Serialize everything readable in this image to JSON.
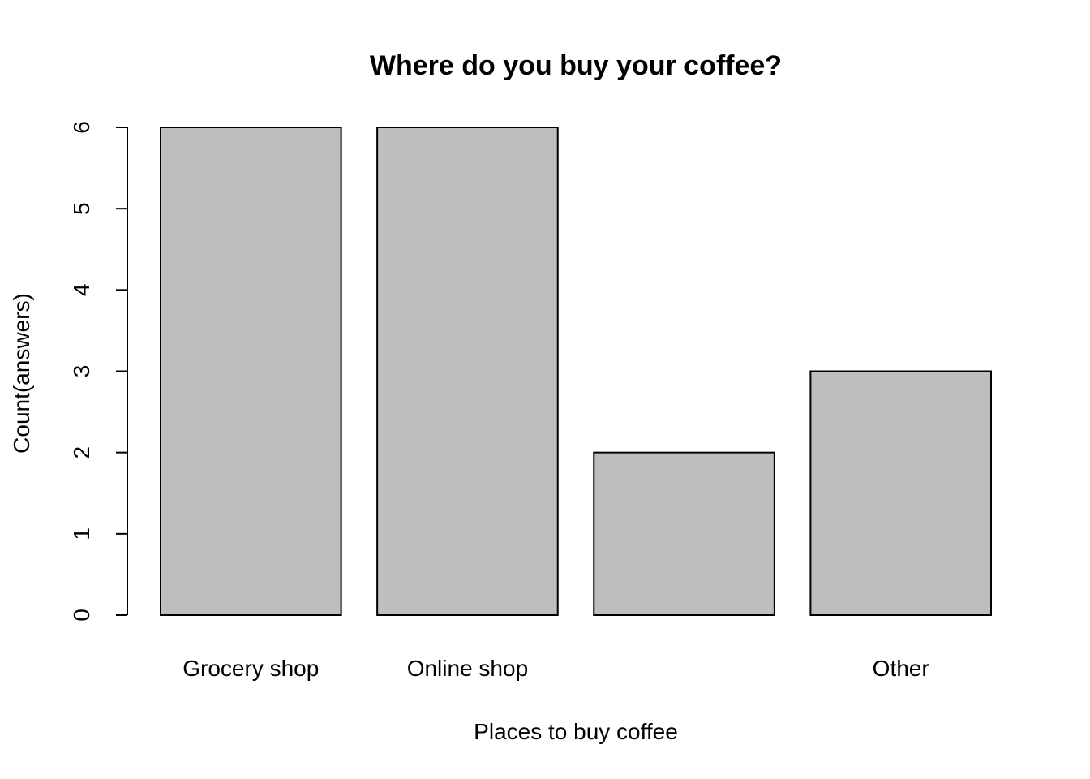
{
  "chart_data": {
    "type": "bar",
    "title": "Where do you buy your coffee?",
    "xlabel": "Places to buy coffee",
    "ylabel": "Count(answers)",
    "categories": [
      "Grocery shop",
      "Online shop",
      "",
      "Other"
    ],
    "values": [
      6,
      6,
      2,
      3
    ],
    "ylim": [
      0,
      6
    ],
    "yticks": [
      "0",
      "1",
      "2",
      "3",
      "4",
      "5",
      "6"
    ],
    "grid": false,
    "legend": "none",
    "bar_color": "#bebebe"
  }
}
